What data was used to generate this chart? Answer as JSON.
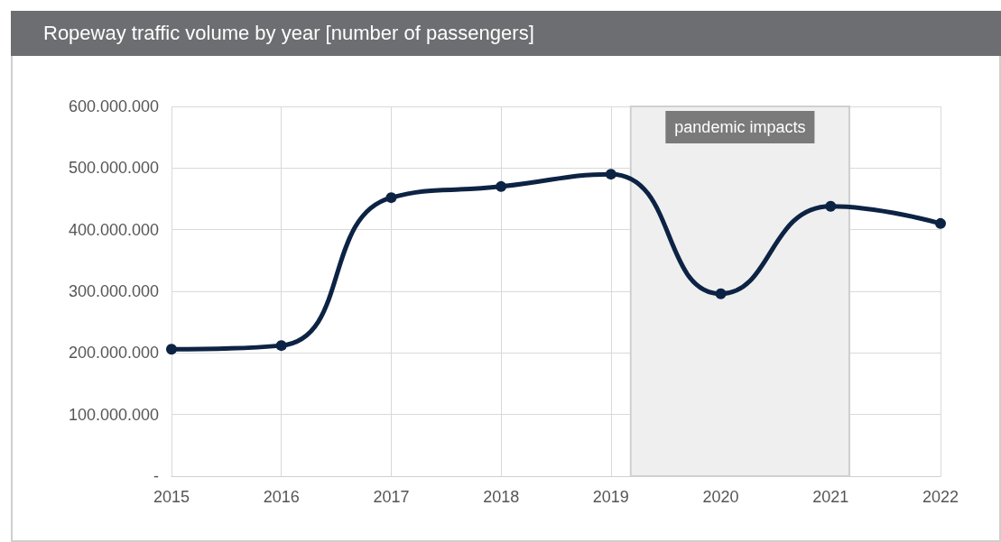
{
  "chart_data": {
    "type": "line",
    "title": "Ropeway traffic volume by year [number of passengers]",
    "x": [
      2015,
      2016,
      2017,
      2018,
      2019,
      2020,
      2021,
      2022
    ],
    "values": [
      206000000,
      212000000,
      452000000,
      470000000,
      490000000,
      296000000,
      438000000,
      410000000
    ],
    "color": "#0d2344",
    "marker": "circle",
    "line_style": "solid",
    "xlim": [
      2015,
      2022
    ],
    "xticks": [
      2015,
      2016,
      2017,
      2018,
      2019,
      2020,
      2021,
      2022
    ],
    "ylim": [
      0,
      600000000
    ],
    "yticks": [
      {
        "value": 0,
        "label": "-"
      },
      {
        "value": 100000000,
        "label": "100.000.000"
      },
      {
        "value": 200000000,
        "label": "200.000.000"
      },
      {
        "value": 300000000,
        "label": "300.000.000"
      },
      {
        "value": 400000000,
        "label": "400.000.000"
      },
      {
        "value": 500000000,
        "label": "500.000.000"
      },
      {
        "value": 600000000,
        "label": "600.000.000"
      }
    ],
    "bands": [
      {
        "axis": "x",
        "from": 2019.18,
        "to": 2021.17,
        "label": "pandemic impacts",
        "color": "#efefef"
      }
    ],
    "grid": true
  }
}
